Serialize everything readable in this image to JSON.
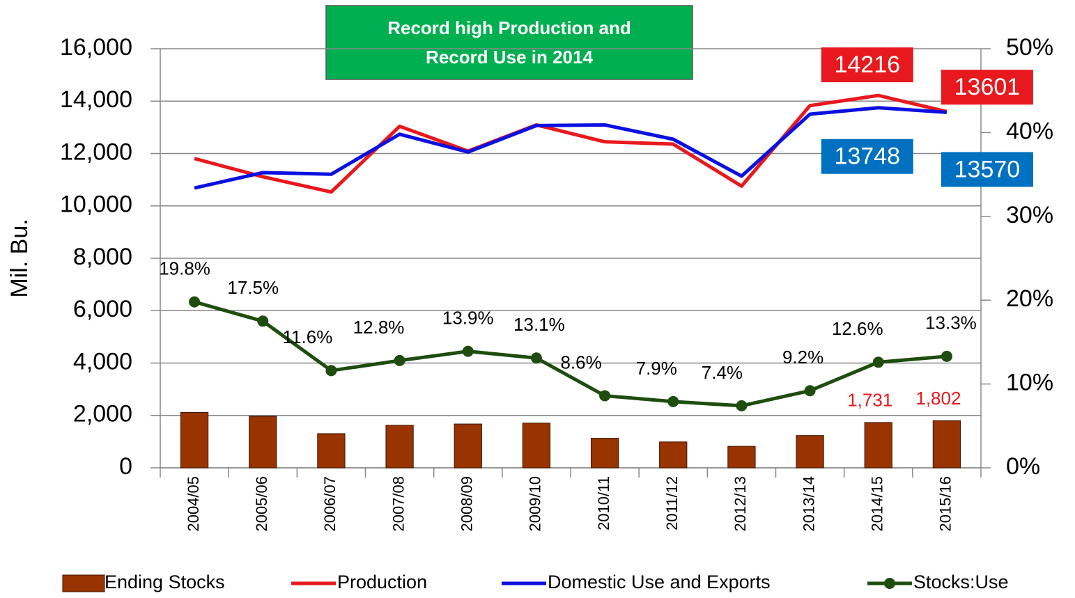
{
  "chart_data": {
    "type": "combo",
    "annotation": [
      "Record high Production  and",
      "Record Use in 2014"
    ],
    "y_label": "Mil. Bu.",
    "categories": [
      "2004/05",
      "2005/06",
      "2006/07",
      "2007/08",
      "2008/09",
      "2009/10",
      "2010/11",
      "2011/12",
      "2012/13",
      "2013/14",
      "2014/15",
      "2015/16"
    ],
    "series": [
      {
        "name": "Ending Stocks",
        "type": "bar",
        "color": "#993300",
        "values": [
          2114,
          1967,
          1304,
          1624,
          1673,
          1708,
          1128,
          989,
          821,
          1232,
          1731,
          1802
        ],
        "value_labels": [
          null,
          null,
          null,
          null,
          null,
          null,
          null,
          null,
          null,
          null,
          "1,731",
          "1,802"
        ],
        "label_color": "#e8191e"
      },
      {
        "name": "Production",
        "type": "line",
        "color": "#e8191e",
        "values": [
          11807,
          11112,
          10531,
          13038,
          12092,
          13092,
          12447,
          12360,
          10755,
          13829,
          14216,
          13601
        ],
        "value_labels": [
          null,
          null,
          null,
          null,
          null,
          null,
          null,
          null,
          null,
          null,
          "14216",
          "13601"
        ]
      },
      {
        "name": "Domestic Use and Exports",
        "type": "line",
        "color": "#0a10e0",
        "values": [
          10684,
          11270,
          11208,
          12737,
          12056,
          13066,
          13090,
          12545,
          11136,
          13502,
          13748,
          13570
        ],
        "value_labels": [
          null,
          null,
          null,
          null,
          null,
          null,
          null,
          null,
          null,
          null,
          "13748",
          "13570"
        ],
        "label_box_color": "#0070c0"
      },
      {
        "name": "Stocks:Use",
        "type": "line",
        "marker": "circle",
        "axis": "y2",
        "color": "#1e4d0f",
        "values": [
          19.8,
          17.5,
          11.6,
          12.8,
          13.9,
          13.1,
          8.6,
          7.9,
          7.4,
          9.2,
          12.6,
          13.3
        ],
        "value_labels": [
          "19.8%",
          "17.5%",
          "11.6%",
          "12.8%",
          "13.9%",
          "13.1%",
          "8.6%",
          "7.9%",
          "7.4%",
          "9.2%",
          "12.6%",
          "13.3%"
        ]
      }
    ],
    "ylim": [
      0,
      16000
    ],
    "yticks": [
      0,
      {
        "value": 2000,
        "label": "2,000"
      },
      {
        "value": 4000,
        "label": "4,000"
      },
      {
        "value": 6000,
        "label": "6,000"
      },
      {
        "value": 8000,
        "label": "8,000"
      },
      {
        "value": 10000,
        "label": "10,000"
      },
      {
        "value": 12000,
        "label": "12,000"
      },
      {
        "value": 14000,
        "label": "14,000"
      },
      {
        "value": 16000,
        "label": "16,000"
      }
    ],
    "y2lim": [
      0,
      50
    ],
    "y2ticks": [
      {
        "value": 0,
        "label": "0%"
      },
      {
        "value": 10,
        "label": "10%"
      },
      {
        "value": 20,
        "label": "20%"
      },
      {
        "value": 30,
        "label": "30%"
      },
      {
        "value": 40,
        "label": "40%"
      },
      {
        "value": 50,
        "label": "50%"
      }
    ],
    "grid": true,
    "legend": "bottom"
  }
}
